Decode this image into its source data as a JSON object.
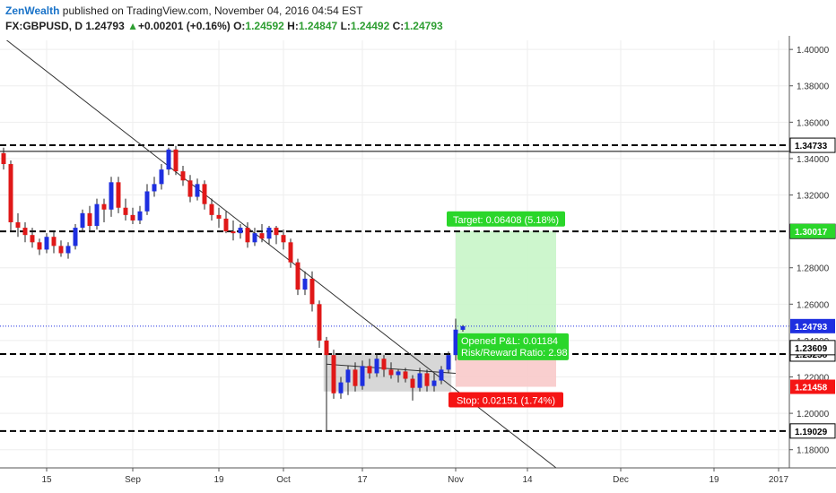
{
  "header": {
    "author": "ZenWealth",
    "published_text": "published on TradingView.com, November 04, 2016 04:54 EST",
    "symbol": "FX:GBPUSD, D",
    "last_price": "1.24793",
    "up_arrow": "▲",
    "change": "+0.00201 (+0.16%)",
    "open_label": "O:",
    "open": "1.24592",
    "high_label": "H:",
    "high": "1.24847",
    "low_label": "L:",
    "low": "1.24492",
    "close_label": "C:",
    "close": "1.24793"
  },
  "colors": {
    "bull": "#1e2fe0",
    "bear": "#e01818",
    "target_zone": "#c8f5c8",
    "stop_zone": "#f8caca",
    "label_green": "#2ad62a",
    "label_red": "#f51414",
    "label_blue": "#1e2fe0",
    "grid": "#eeeeee"
  },
  "chart_data": {
    "type": "candlestick",
    "symbol": "FX:GBPUSD",
    "timeframe": "D",
    "ylim": [
      1.17,
      1.405
    ],
    "y_ticks": [
      "1.40000",
      "1.38000",
      "1.36000",
      "1.34000",
      "1.32000",
      "1.28000",
      "1.26000",
      "1.24000",
      "1.22000",
      "1.20000",
      "1.18000"
    ],
    "x_ticks": [
      {
        "label": "15",
        "index": 6
      },
      {
        "label": "Sep",
        "index": 18
      },
      {
        "label": "19",
        "index": 30
      },
      {
        "label": "Oct",
        "index": 39
      },
      {
        "label": "17",
        "index": 50
      },
      {
        "label": "Nov",
        "index": 63
      },
      {
        "label": "14",
        "index": 73
      },
      {
        "label": "Dec",
        "index": 86
      },
      {
        "label": "19",
        "index": 99
      },
      {
        "label": "2017",
        "index": 108
      }
    ],
    "x_index_range": [
      -0.5,
      109.5
    ],
    "candles": [
      [
        1.343,
        1.346,
        1.334,
        1.337
      ],
      [
        1.337,
        1.339,
        1.3,
        1.305
      ],
      [
        1.305,
        1.31,
        1.297,
        1.302
      ],
      [
        1.302,
        1.305,
        1.294,
        1.298
      ],
      [
        1.298,
        1.302,
        1.291,
        1.294
      ],
      [
        1.294,
        1.296,
        1.287,
        1.29
      ],
      [
        1.29,
        1.299,
        1.288,
        1.297
      ],
      [
        1.297,
        1.3,
        1.288,
        1.292
      ],
      [
        1.292,
        1.295,
        1.286,
        1.288
      ],
      [
        1.288,
        1.294,
        1.285,
        1.292
      ],
      [
        1.292,
        1.304,
        1.29,
        1.302
      ],
      [
        1.302,
        1.312,
        1.3,
        1.31
      ],
      [
        1.31,
        1.314,
        1.3,
        1.303
      ],
      [
        1.303,
        1.318,
        1.301,
        1.315
      ],
      [
        1.315,
        1.318,
        1.305,
        1.312
      ],
      [
        1.312,
        1.33,
        1.308,
        1.327
      ],
      [
        1.327,
        1.33,
        1.31,
        1.313
      ],
      [
        1.313,
        1.318,
        1.306,
        1.309
      ],
      [
        1.309,
        1.313,
        1.304,
        1.306
      ],
      [
        1.306,
        1.314,
        1.304,
        1.311
      ],
      [
        1.311,
        1.326,
        1.309,
        1.322
      ],
      [
        1.322,
        1.33,
        1.319,
        1.326
      ],
      [
        1.326,
        1.337,
        1.323,
        1.334
      ],
      [
        1.334,
        1.346,
        1.331,
        1.345
      ],
      [
        1.345,
        1.347,
        1.331,
        1.333
      ],
      [
        1.333,
        1.336,
        1.325,
        1.328
      ],
      [
        1.328,
        1.331,
        1.316,
        1.319
      ],
      [
        1.319,
        1.329,
        1.317,
        1.326
      ],
      [
        1.326,
        1.328,
        1.312,
        1.315
      ],
      [
        1.315,
        1.318,
        1.306,
        1.309
      ],
      [
        1.309,
        1.313,
        1.302,
        1.307
      ],
      [
        1.307,
        1.311,
        1.299,
        1.3
      ],
      [
        1.3,
        1.306,
        1.295,
        1.299
      ],
      [
        1.299,
        1.304,
        1.296,
        1.302
      ],
      [
        1.302,
        1.305,
        1.291,
        1.294
      ],
      [
        1.294,
        1.302,
        1.292,
        1.299
      ],
      [
        1.299,
        1.304,
        1.294,
        1.296
      ],
      [
        1.296,
        1.303,
        1.293,
        1.302
      ],
      [
        1.302,
        1.303,
        1.293,
        1.298
      ],
      [
        1.298,
        1.301,
        1.29,
        1.294
      ],
      [
        1.294,
        1.296,
        1.28,
        1.283
      ],
      [
        1.283,
        1.285,
        1.265,
        1.268
      ],
      [
        1.268,
        1.278,
        1.265,
        1.274
      ],
      [
        1.274,
        1.278,
        1.256,
        1.26
      ],
      [
        1.26,
        1.262,
        1.236,
        1.24
      ],
      [
        1.24,
        1.242,
        1.19,
        1.232
      ],
      [
        1.232,
        1.235,
        1.208,
        1.211
      ],
      [
        1.211,
        1.22,
        1.208,
        1.217
      ],
      [
        1.217,
        1.226,
        1.21,
        1.224
      ],
      [
        1.224,
        1.228,
        1.212,
        1.215
      ],
      [
        1.215,
        1.229,
        1.213,
        1.226
      ],
      [
        1.226,
        1.23,
        1.219,
        1.222
      ],
      [
        1.222,
        1.233,
        1.22,
        1.23
      ],
      [
        1.23,
        1.232,
        1.22,
        1.224
      ],
      [
        1.224,
        1.228,
        1.219,
        1.221
      ],
      [
        1.221,
        1.224,
        1.217,
        1.223
      ],
      [
        1.223,
        1.225,
        1.217,
        1.219
      ],
      [
        1.219,
        1.221,
        1.207,
        1.214
      ],
      [
        1.214,
        1.225,
        1.212,
        1.222
      ],
      [
        1.222,
        1.224,
        1.212,
        1.215
      ],
      [
        1.215,
        1.222,
        1.212,
        1.218
      ],
      [
        1.218,
        1.226,
        1.216,
        1.224
      ],
      [
        1.224,
        1.234,
        1.222,
        1.232
      ],
      [
        1.232,
        1.252,
        1.229,
        1.246
      ],
      [
        1.2459,
        1.2485,
        1.2449,
        1.2479
      ]
    ],
    "horizontal_levels": [
      {
        "price": 1.34733,
        "label": "1.34733"
      },
      {
        "price": 1.3,
        "label": "1.30000"
      },
      {
        "price": 1.23258,
        "label": "1.23258"
      },
      {
        "price": 1.19029,
        "label": "1.19029"
      }
    ],
    "solid_level": 1.344,
    "current_price": {
      "price": 1.24793,
      "label": "1.24793"
    },
    "price_labels": {
      "target": {
        "price": 1.30017,
        "label": "1.30017"
      },
      "entry": {
        "price": 1.23609,
        "label": "1.23609"
      },
      "stop": {
        "price": 1.21458,
        "label": "1.21458"
      }
    },
    "trendlines": [
      {
        "start": [
          -2.8,
          1.415
        ],
        "end": [
          77,
          1.17
        ]
      },
      {
        "start": [
          45,
          1.227
        ],
        "end": [
          63,
          1.222
        ]
      }
    ],
    "consolidation_box": {
      "start_index": 45,
      "end_index": 62,
      "top": 1.233,
      "bottom": 1.212
    },
    "position": {
      "type": "long",
      "start_index": 63,
      "end_index": 77,
      "entry": 1.23609,
      "target": 1.30017,
      "stop": 1.21458,
      "target_label": "Target: 0.06408 (5.18%)",
      "stop_label": "Stop: 0.02151 (1.74%)",
      "pnl_label": "Opened P&L: 0.01184",
      "rr_label": "Risk/Reward Ratio: 2.98"
    }
  }
}
